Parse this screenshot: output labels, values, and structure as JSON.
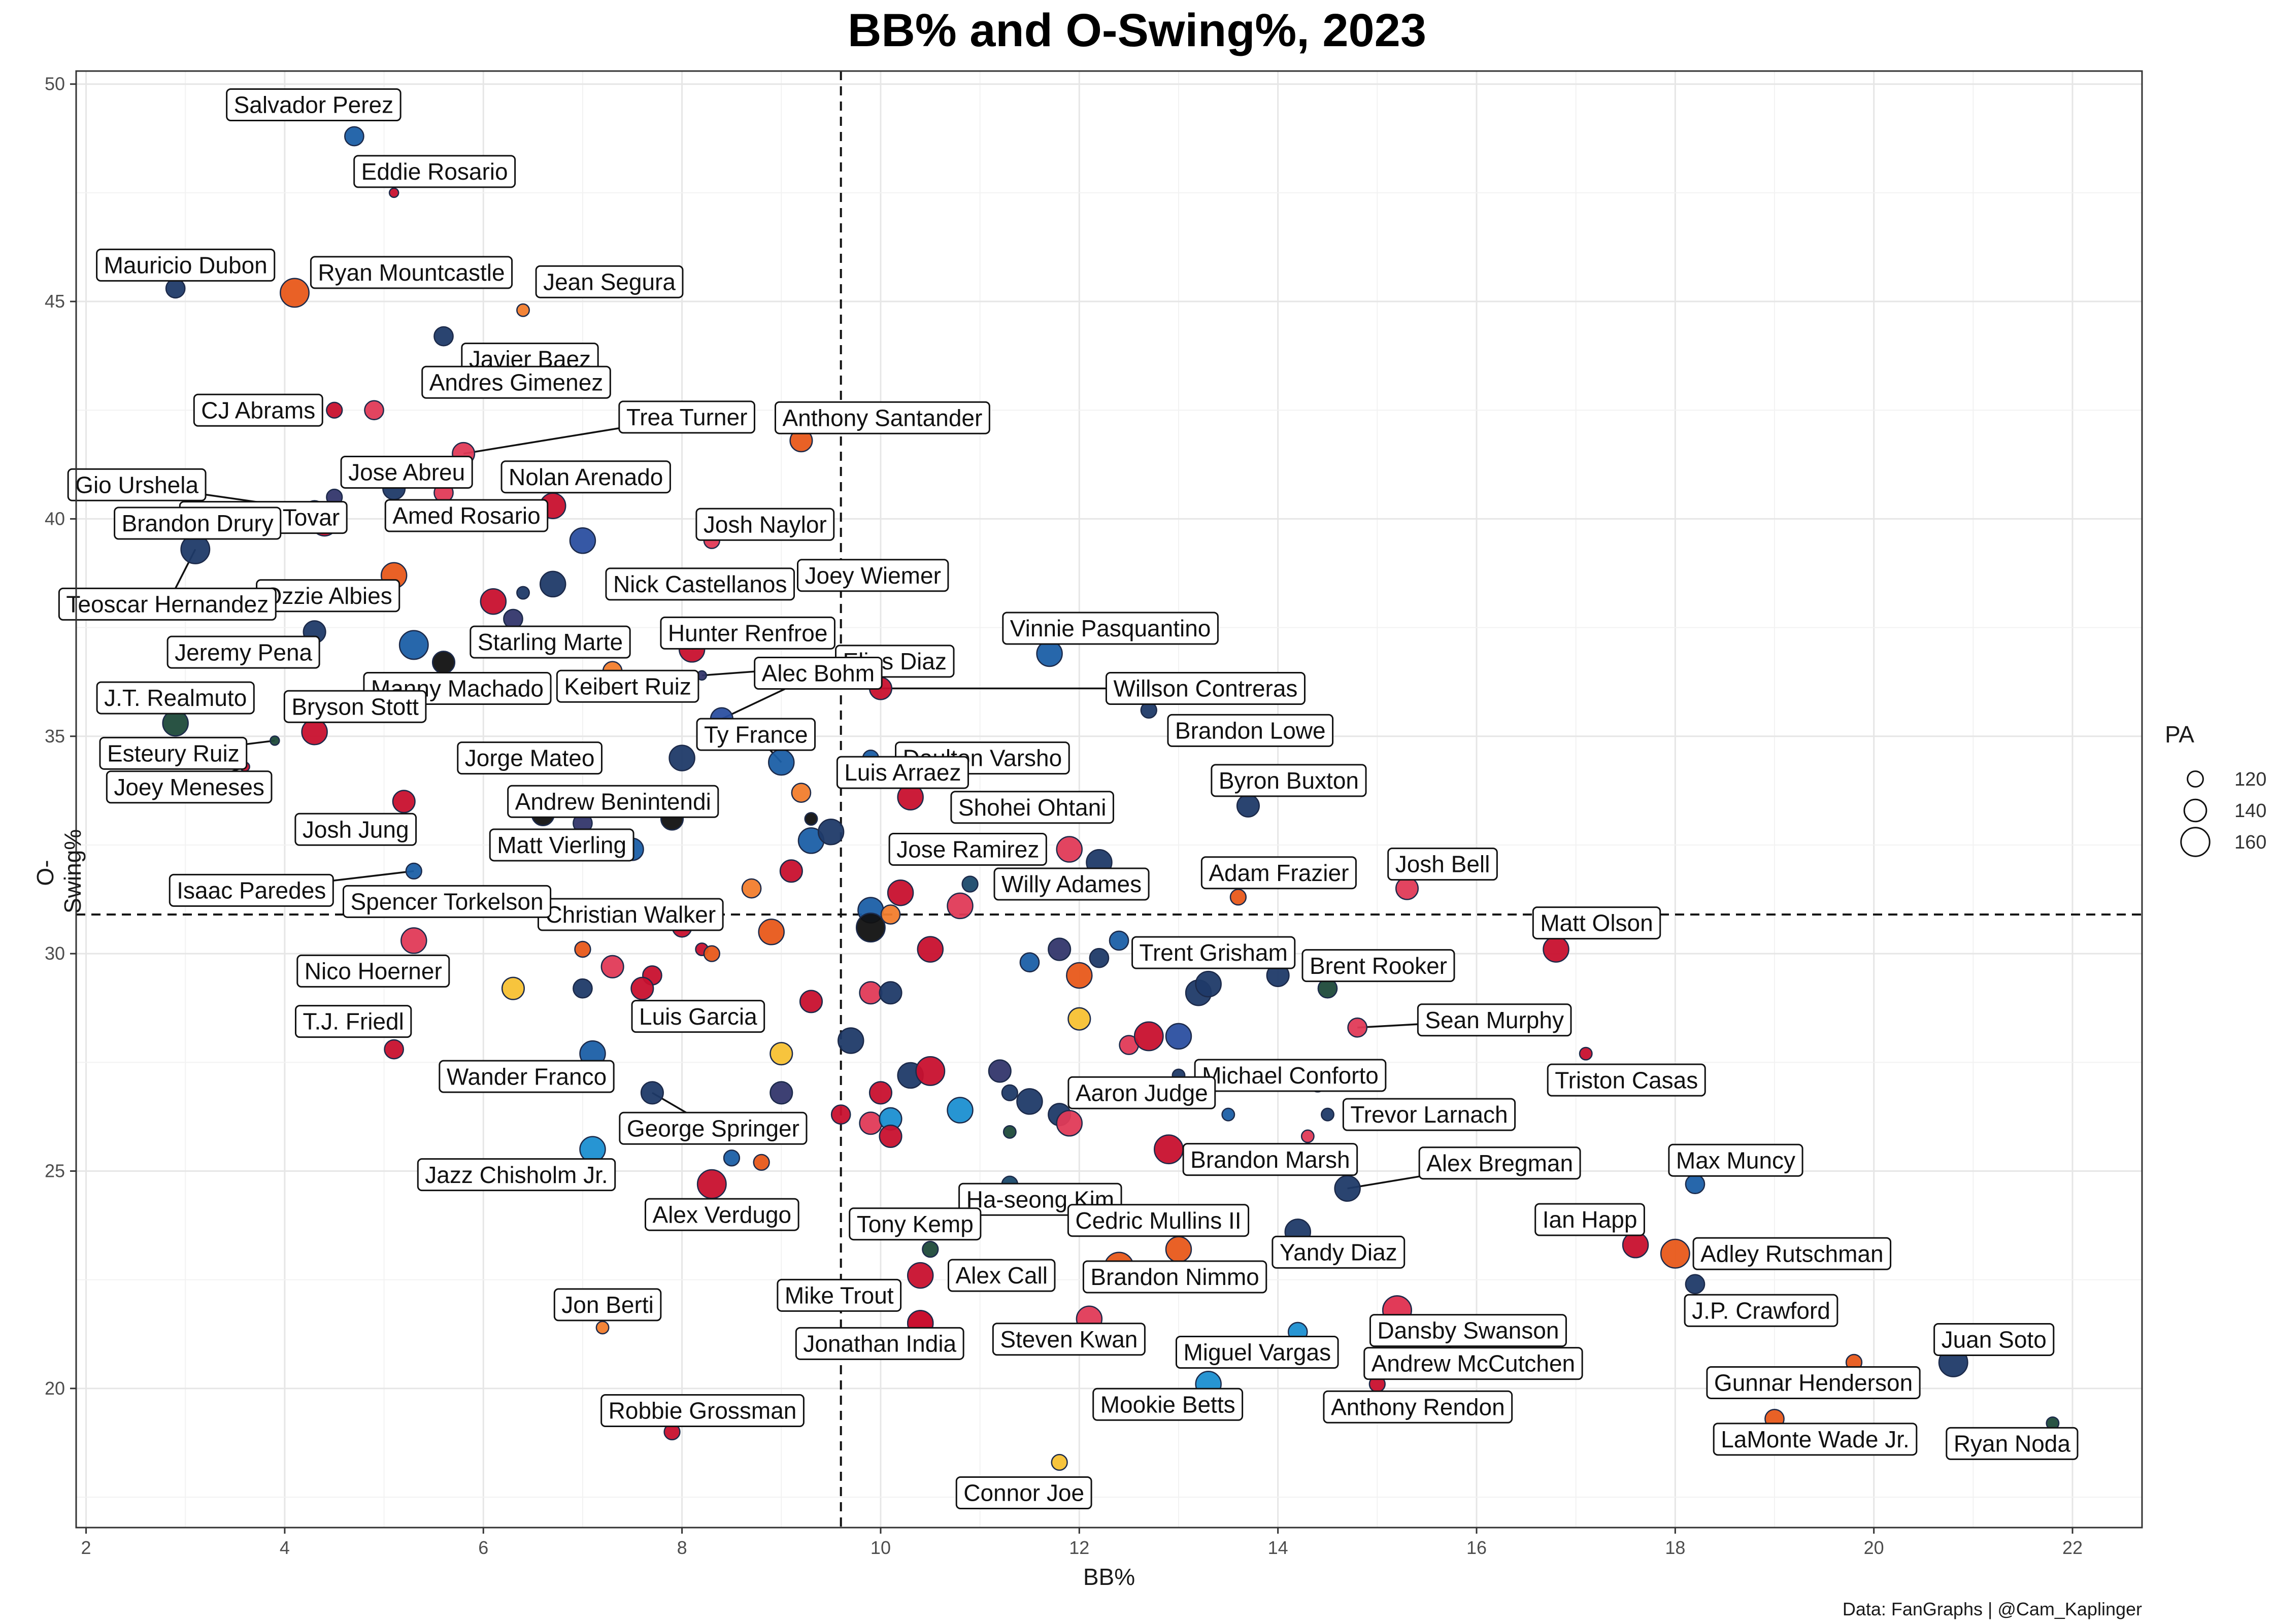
{
  "chart_data": {
    "type": "scatter",
    "title": "BB% and O-Swing%, 2023",
    "xlabel": "BB%",
    "ylabel": "O-Swing%",
    "caption": "Data: FanGraphs | @Cam_Kaplinger",
    "xlim": [
      1.9,
      22.7
    ],
    "ylim": [
      16.8,
      50.3
    ],
    "x_ticks": [
      "2",
      "4",
      "6",
      "8",
      "10",
      "12",
      "14",
      "16",
      "18",
      "20",
      "22"
    ],
    "y_ticks": [
      "20",
      "25",
      "30",
      "35",
      "40",
      "45",
      "50"
    ],
    "x_reference_line": 9.6,
    "y_reference_line": 30.9,
    "grid": true,
    "legend": {
      "title": "PA",
      "position": "right",
      "entries": [
        {
          "label": "120",
          "value": 120
        },
        {
          "label": "140",
          "value": 140
        },
        {
          "label": "160",
          "value": 160
        }
      ]
    },
    "labeled_points": [
      {
        "name": "Salvador Perez",
        "x": 4.7,
        "y": 48.8,
        "pa": 130,
        "color": "#1b5fa6"
      },
      {
        "name": "Eddie Rosario",
        "x": 5.1,
        "y": 47.5,
        "pa": 100,
        "color": "#c8102e"
      },
      {
        "name": "Mauricio Dubon",
        "x": 2.9,
        "y": 45.3,
        "pa": 130,
        "color": "#1f3a68"
      },
      {
        "name": "Ryan Mountcastle",
        "x": 4.1,
        "y": 45.2,
        "pa": 160,
        "color": "#e8591a"
      },
      {
        "name": "Jean Segura",
        "x": 6.4,
        "y": 44.8,
        "pa": 110,
        "color": "#f27d2d"
      },
      {
        "name": "Javier Baez",
        "x": 5.6,
        "y": 44.2,
        "pa": 130,
        "color": "#1f3a68"
      },
      {
        "name": "CJ Abrams",
        "x": 4.5,
        "y": 42.5,
        "pa": 120,
        "color": "#c8102e"
      },
      {
        "name": "Andres Gimenez",
        "x": 4.9,
        "y": 42.5,
        "pa": 130,
        "color": "#e03a57"
      },
      {
        "name": "Trea Turner",
        "x": 5.8,
        "y": 41.5,
        "pa": 140,
        "color": "#e03a57"
      },
      {
        "name": "Anthony Santander",
        "x": 9.2,
        "y": 41.8,
        "pa": 140,
        "color": "#e8591a"
      },
      {
        "name": "Gio Urshela",
        "x": 4.3,
        "y": 40.2,
        "pa": 130,
        "color": "#c8102e"
      },
      {
        "name": "Ezequiel Tovar",
        "x": 4.5,
        "y": 40.5,
        "pa": 120,
        "color": "#33366b"
      },
      {
        "name": "Jose Abreu",
        "x": 5.1,
        "y": 40.7,
        "pa": 140,
        "color": "#1f3a68"
      },
      {
        "name": "Nolan Arenado",
        "x": 6.7,
        "y": 40.3,
        "pa": 150,
        "color": "#c8102e"
      },
      {
        "name": "Brandon Drury",
        "x": 4.4,
        "y": 39.9,
        "pa": 150,
        "color": "#c8102e"
      },
      {
        "name": "Amed Rosario",
        "x": 5.6,
        "y": 40.6,
        "pa": 130,
        "color": "#e03a57"
      },
      {
        "name": "Josh Naylor",
        "x": 8.3,
        "y": 39.5,
        "pa": 120,
        "color": "#e03a57"
      },
      {
        "name": "Ozzie Albies",
        "x": 5.1,
        "y": 38.7,
        "pa": 150,
        "color": "#e8591a"
      },
      {
        "name": "Nick Castellanos",
        "x": 6.7,
        "y": 38.5,
        "pa": 150,
        "color": "#1f3a68"
      },
      {
        "name": "Joey Wiemer",
        "x": 8.9,
        "y": 38.7,
        "pa": 100,
        "color": "#1f3a68"
      },
      {
        "name": "Teoscar Hernandez",
        "x": 3.1,
        "y": 39.3,
        "pa": 160,
        "color": "#1f3a68"
      },
      {
        "name": "Hunter Renfroe",
        "x": 8.1,
        "y": 37.0,
        "pa": 150,
        "color": "#c8102e"
      },
      {
        "name": "Elias Diaz",
        "x": 8.2,
        "y": 36.4,
        "pa": 100,
        "color": "#33366b"
      },
      {
        "name": "Vinnie Pasquantino",
        "x": 11.7,
        "y": 36.9,
        "pa": 150,
        "color": "#1b5fa6"
      },
      {
        "name": "Starling Marte",
        "x": 5.6,
        "y": 36.7,
        "pa": 140,
        "color": "#111111"
      },
      {
        "name": "Jeremy Pena",
        "x": 4.3,
        "y": 37.4,
        "pa": 140,
        "color": "#1f3a68"
      },
      {
        "name": "Alec Bohm",
        "x": 8.4,
        "y": 35.4,
        "pa": 140,
        "color": "#2b4fa0"
      },
      {
        "name": "Willson Contreras",
        "x": 10.0,
        "y": 36.1,
        "pa": 140,
        "color": "#c8102e"
      },
      {
        "name": "J.T. Realmuto",
        "x": 2.9,
        "y": 35.3,
        "pa": 150,
        "color": "#1e4a3a"
      },
      {
        "name": "Manny Machado",
        "x": 6.3,
        "y": 36.1,
        "pa": 130,
        "color": "#6b3a1a"
      },
      {
        "name": "Keibert Ruiz",
        "x": 7.3,
        "y": 36.5,
        "pa": 130,
        "color": "#f27d2d"
      },
      {
        "name": "Bryson Stott",
        "x": 4.3,
        "y": 35.1,
        "pa": 150,
        "color": "#c8102e"
      },
      {
        "name": "Brandon Lowe",
        "x": 12.7,
        "y": 35.6,
        "pa": 120,
        "color": "#1f3a68"
      },
      {
        "name": "Daulton Varsho",
        "x": 9.9,
        "y": 34.5,
        "pa": 120,
        "color": "#1b5fa6"
      },
      {
        "name": "Esteury Ruiz",
        "x": 3.9,
        "y": 34.9,
        "pa": 100,
        "color": "#1e4a3a"
      },
      {
        "name": "Jorge Mateo",
        "x": 8.0,
        "y": 34.5,
        "pa": 150,
        "color": "#1f3a68"
      },
      {
        "name": "Ty France",
        "x": 9.0,
        "y": 34.4,
        "pa": 150,
        "color": "#1b5fa6"
      },
      {
        "name": "Luis Arraez",
        "x": 9.2,
        "y": 33.7,
        "pa": 130,
        "color": "#f27d2d"
      },
      {
        "name": "Byron Buxton",
        "x": 13.7,
        "y": 33.4,
        "pa": 140,
        "color": "#1f3a68"
      },
      {
        "name": "Shohei Ohtani",
        "x": 10.3,
        "y": 33.6,
        "pa": 150,
        "color": "#c8102e"
      },
      {
        "name": "Joey Meneses",
        "x": 3.6,
        "y": 34.3,
        "pa": 100,
        "color": "#c8102e"
      },
      {
        "name": "Andrew Benintendi",
        "x": 8.2,
        "y": 33.5,
        "pa": 130,
        "color": "#111111"
      },
      {
        "name": "Josh Jung",
        "x": 5.2,
        "y": 33.5,
        "pa": 140,
        "color": "#c8102e"
      },
      {
        "name": "Jose Ramirez",
        "x": 11.9,
        "y": 32.4,
        "pa": 150,
        "color": "#e03a57"
      },
      {
        "name": "Matt Vierling",
        "x": 7.3,
        "y": 32.5,
        "pa": 110,
        "color": "#1b5fa6"
      },
      {
        "name": "Adam Frazier",
        "x": 13.6,
        "y": 31.3,
        "pa": 120,
        "color": "#e8591a"
      },
      {
        "name": "Josh Bell",
        "x": 15.3,
        "y": 31.5,
        "pa": 140,
        "color": "#e03a57"
      },
      {
        "name": "Isaac Paredes",
        "x": 5.3,
        "y": 31.9,
        "pa": 120,
        "color": "#1b5fa6"
      },
      {
        "name": "Willy Adames",
        "x": 10.9,
        "y": 31.6,
        "pa": 120,
        "color": "#1b4a6b"
      },
      {
        "name": "Christian Walker",
        "x": 8.3,
        "y": 30.9,
        "pa": 130,
        "color": "#c8102e"
      },
      {
        "name": "Spencer Torkelson",
        "x": 6.4,
        "y": 31.2,
        "pa": 130,
        "color": "#c8102e"
      },
      {
        "name": "Matt Olson",
        "x": 16.8,
        "y": 30.1,
        "pa": 150,
        "color": "#c8102e"
      },
      {
        "name": "Trent Grisham",
        "x": 13.3,
        "y": 29.3,
        "pa": 150,
        "color": "#1f3a68"
      },
      {
        "name": "Brent Rooker",
        "x": 14.5,
        "y": 29.2,
        "pa": 130,
        "color": "#1e4a3a"
      },
      {
        "name": "Nico Hoerner",
        "x": 5.3,
        "y": 30.3,
        "pa": 150,
        "color": "#e03a57"
      },
      {
        "name": "Sean Murphy",
        "x": 14.8,
        "y": 28.3,
        "pa": 130,
        "color": "#e03a57"
      },
      {
        "name": "Luis Garcia",
        "x": 7.6,
        "y": 29.2,
        "pa": 140,
        "color": "#c8102e"
      },
      {
        "name": "T.J. Friedl",
        "x": 5.1,
        "y": 27.8,
        "pa": 130,
        "color": "#c8102e"
      },
      {
        "name": "Triston Casas",
        "x": 17.1,
        "y": 27.7,
        "pa": 110,
        "color": "#c8102e"
      },
      {
        "name": "Michael Conforto",
        "x": 13.0,
        "y": 27.2,
        "pa": 110,
        "color": "#1f3a68"
      },
      {
        "name": "Wander Franco",
        "x": 7.1,
        "y": 27.7,
        "pa": 150,
        "color": "#1b5fa6"
      },
      {
        "name": "Aaron Judge",
        "x": 11.3,
        "y": 26.8,
        "pa": 120,
        "color": "#1f3a68"
      },
      {
        "name": "Trevor Larnach",
        "x": 14.5,
        "y": 26.3,
        "pa": 110,
        "color": "#1f3a68"
      },
      {
        "name": "George Springer",
        "x": 7.7,
        "y": 26.8,
        "pa": 140,
        "color": "#1f3a68"
      },
      {
        "name": "Brandon Marsh",
        "x": 12.9,
        "y": 25.5,
        "pa": 160,
        "color": "#c8102e"
      },
      {
        "name": "Ha-seong Kim",
        "x": 11.3,
        "y": 24.7,
        "pa": 120,
        "color": "#1b4a6b"
      },
      {
        "name": "Alex Bregman",
        "x": 14.7,
        "y": 24.6,
        "pa": 150,
        "color": "#1f3a68"
      },
      {
        "name": "Jazz Chisholm Jr.",
        "x": 7.1,
        "y": 25.5,
        "pa": 150,
        "color": "#1b8fd1"
      },
      {
        "name": "Max Muncy",
        "x": 18.2,
        "y": 24.7,
        "pa": 130,
        "color": "#1b5fa6"
      },
      {
        "name": "Alex Verdugo",
        "x": 8.3,
        "y": 24.7,
        "pa": 160,
        "color": "#c8102e"
      },
      {
        "name": "Ian Happ",
        "x": 17.6,
        "y": 23.3,
        "pa": 150,
        "color": "#c8102e"
      },
      {
        "name": "Tony Kemp",
        "x": 10.5,
        "y": 23.2,
        "pa": 120,
        "color": "#1e4a3a"
      },
      {
        "name": "Cedric Mullins II",
        "x": 13.0,
        "y": 23.2,
        "pa": 150,
        "color": "#e8591a"
      },
      {
        "name": "Adley Rutschman",
        "x": 18.0,
        "y": 23.1,
        "pa": 160,
        "color": "#e8591a"
      },
      {
        "name": "Yandy Diaz",
        "x": 14.2,
        "y": 23.6,
        "pa": 150,
        "color": "#1f3a68"
      },
      {
        "name": "Alex Call",
        "x": 10.4,
        "y": 22.6,
        "pa": 150,
        "color": "#c8102e"
      },
      {
        "name": "Andrew McCutchen",
        "x": 15.2,
        "y": 21.8,
        "pa": 160,
        "color": "#e03a57"
      },
      {
        "name": "J.P. Crawford",
        "x": 18.2,
        "y": 22.4,
        "pa": 130,
        "color": "#1f3a68"
      },
      {
        "name": "Mike Trout",
        "x": 10.4,
        "y": 21.5,
        "pa": 150,
        "color": "#c8102e"
      },
      {
        "name": "Brandon Nimmo",
        "x": 12.4,
        "y": 22.8,
        "pa": 160,
        "color": "#e8591a"
      },
      {
        "name": "Jon Berti",
        "x": 7.2,
        "y": 21.4,
        "pa": 110,
        "color": "#f27d2d"
      },
      {
        "name": "Jonathan India",
        "x": 10.4,
        "y": 21.5,
        "pa": 150,
        "color": "#c8102e"
      },
      {
        "name": "Steven Kwan",
        "x": 12.1,
        "y": 21.6,
        "pa": 150,
        "color": "#e03a57"
      },
      {
        "name": "Dansby Swanson",
        "x": 15.2,
        "y": 21.8,
        "pa": 160,
        "color": "#e03a57"
      },
      {
        "name": "Juan Soto",
        "x": 20.8,
        "y": 20.6,
        "pa": 160,
        "color": "#1f3a68"
      },
      {
        "name": "Miguel Vargas",
        "x": 14.2,
        "y": 21.3,
        "pa": 130,
        "color": "#1b8fd1"
      },
      {
        "name": "Gunnar Henderson",
        "x": 19.8,
        "y": 20.6,
        "pa": 120,
        "color": "#e8591a"
      },
      {
        "name": "Mookie Betts",
        "x": 13.3,
        "y": 20.1,
        "pa": 150,
        "color": "#1b8fd1"
      },
      {
        "name": "Anthony Rendon",
        "x": 15.0,
        "y": 20.1,
        "pa": 120,
        "color": "#c8102e"
      },
      {
        "name": "Robbie Grossman",
        "x": 7.9,
        "y": 19.0,
        "pa": 120,
        "color": "#c8102e"
      },
      {
        "name": "LaMonte Wade Jr.",
        "x": 19.0,
        "y": 19.3,
        "pa": 130,
        "color": "#e8591a"
      },
      {
        "name": "Ryan Noda",
        "x": 21.8,
        "y": 19.2,
        "pa": 110,
        "color": "#1e4a3a"
      },
      {
        "name": "Connor Joe",
        "x": 11.8,
        "y": 18.3,
        "pa": 120,
        "color": "#f7c133"
      }
    ],
    "unlabeled_points": [
      {
        "x": 5.3,
        "y": 37.1,
        "pa": 160,
        "color": "#1b5fa6"
      },
      {
        "x": 6.1,
        "y": 38.1,
        "pa": 150,
        "color": "#c8102e"
      },
      {
        "x": 6.3,
        "y": 37.7,
        "pa": 130,
        "color": "#33366b"
      },
      {
        "x": 6.4,
        "y": 38.3,
        "pa": 110,
        "color": "#1f3a68"
      },
      {
        "x": 7.0,
        "y": 39.5,
        "pa": 150,
        "color": "#2b4fa0"
      },
      {
        "x": 7.0,
        "y": 33.0,
        "pa": 130,
        "color": "#33366b"
      },
      {
        "x": 7.5,
        "y": 32.4,
        "pa": 140,
        "color": "#1b5fa6"
      },
      {
        "x": 6.6,
        "y": 33.2,
        "pa": 140,
        "color": "#111111"
      },
      {
        "x": 7.9,
        "y": 33.1,
        "pa": 140,
        "color": "#111111"
      },
      {
        "x": 8.7,
        "y": 31.5,
        "pa": 130,
        "color": "#f27d2d"
      },
      {
        "x": 9.1,
        "y": 31.9,
        "pa": 140,
        "color": "#c8102e"
      },
      {
        "x": 9.3,
        "y": 32.6,
        "pa": 150,
        "color": "#1b5fa6"
      },
      {
        "x": 9.5,
        "y": 32.8,
        "pa": 150,
        "color": "#1f3a68"
      },
      {
        "x": 9.3,
        "y": 33.1,
        "pa": 110,
        "color": "#111111"
      },
      {
        "x": 10.2,
        "y": 31.4,
        "pa": 150,
        "color": "#c8102e"
      },
      {
        "x": 9.9,
        "y": 31.0,
        "pa": 150,
        "color": "#1b5fa6"
      },
      {
        "x": 9.9,
        "y": 30.6,
        "pa": 160,
        "color": "#111111"
      },
      {
        "x": 10.1,
        "y": 30.9,
        "pa": 130,
        "color": "#f27d2d"
      },
      {
        "x": 8.0,
        "y": 30.6,
        "pa": 130,
        "color": "#c8102e"
      },
      {
        "x": 8.9,
        "y": 30.5,
        "pa": 150,
        "color": "#e8591a"
      },
      {
        "x": 8.2,
        "y": 30.1,
        "pa": 110,
        "color": "#c8102e"
      },
      {
        "x": 8.3,
        "y": 30.0,
        "pa": 120,
        "color": "#e8591a"
      },
      {
        "x": 7.0,
        "y": 30.1,
        "pa": 120,
        "color": "#e8591a"
      },
      {
        "x": 7.3,
        "y": 29.7,
        "pa": 140,
        "color": "#e03a57"
      },
      {
        "x": 7.0,
        "y": 29.2,
        "pa": 130,
        "color": "#1f3a68"
      },
      {
        "x": 6.3,
        "y": 29.2,
        "pa": 140,
        "color": "#f7c133"
      },
      {
        "x": 7.7,
        "y": 29.5,
        "pa": 130,
        "color": "#c8102e"
      },
      {
        "x": 9.3,
        "y": 28.9,
        "pa": 140,
        "color": "#c8102e"
      },
      {
        "x": 9.0,
        "y": 27.7,
        "pa": 140,
        "color": "#f7c133"
      },
      {
        "x": 9.7,
        "y": 28.0,
        "pa": 150,
        "color": "#1f3a68"
      },
      {
        "x": 9.9,
        "y": 29.1,
        "pa": 140,
        "color": "#e03a57"
      },
      {
        "x": 10.1,
        "y": 29.1,
        "pa": 140,
        "color": "#1f3a68"
      },
      {
        "x": 10.5,
        "y": 30.1,
        "pa": 150,
        "color": "#c8102e"
      },
      {
        "x": 10.8,
        "y": 31.1,
        "pa": 150,
        "color": "#e03a57"
      },
      {
        "x": 11.5,
        "y": 29.8,
        "pa": 130,
        "color": "#1b5fa6"
      },
      {
        "x": 11.8,
        "y": 30.1,
        "pa": 140,
        "color": "#33366b"
      },
      {
        "x": 12.0,
        "y": 29.5,
        "pa": 150,
        "color": "#e8591a"
      },
      {
        "x": 12.2,
        "y": 29.9,
        "pa": 130,
        "color": "#1f3a68"
      },
      {
        "x": 12.4,
        "y": 30.3,
        "pa": 130,
        "color": "#1b5fa6"
      },
      {
        "x": 12.2,
        "y": 32.1,
        "pa": 150,
        "color": "#1f3a68"
      },
      {
        "x": 13.2,
        "y": 29.1,
        "pa": 150,
        "color": "#1f3a68"
      },
      {
        "x": 14.0,
        "y": 29.5,
        "pa": 140,
        "color": "#1f3a68"
      },
      {
        "x": 12.0,
        "y": 28.5,
        "pa": 140,
        "color": "#f7c133"
      },
      {
        "x": 12.5,
        "y": 27.9,
        "pa": 130,
        "color": "#e03a57"
      },
      {
        "x": 12.7,
        "y": 28.1,
        "pa": 160,
        "color": "#c8102e"
      },
      {
        "x": 13.0,
        "y": 28.1,
        "pa": 150,
        "color": "#2b4fa0"
      },
      {
        "x": 10.3,
        "y": 27.2,
        "pa": 150,
        "color": "#1f3a68"
      },
      {
        "x": 10.5,
        "y": 27.3,
        "pa": 160,
        "color": "#c8102e"
      },
      {
        "x": 11.2,
        "y": 27.3,
        "pa": 140,
        "color": "#33366b"
      },
      {
        "x": 11.5,
        "y": 26.6,
        "pa": 150,
        "color": "#1f3a68"
      },
      {
        "x": 10.8,
        "y": 26.4,
        "pa": 150,
        "color": "#1b8fd1"
      },
      {
        "x": 11.8,
        "y": 26.3,
        "pa": 140,
        "color": "#1f3a68"
      },
      {
        "x": 11.9,
        "y": 26.1,
        "pa": 150,
        "color": "#e03a57"
      },
      {
        "x": 10.0,
        "y": 26.8,
        "pa": 140,
        "color": "#c8102e"
      },
      {
        "x": 9.0,
        "y": 26.8,
        "pa": 140,
        "color": "#33366b"
      },
      {
        "x": 9.6,
        "y": 26.3,
        "pa": 130,
        "color": "#c8102e"
      },
      {
        "x": 9.9,
        "y": 26.1,
        "pa": 140,
        "color": "#e03a57"
      },
      {
        "x": 10.1,
        "y": 26.2,
        "pa": 140,
        "color": "#1b8fd1"
      },
      {
        "x": 10.1,
        "y": 25.8,
        "pa": 140,
        "color": "#c8102e"
      },
      {
        "x": 11.3,
        "y": 25.9,
        "pa": 110,
        "color": "#1e4a3a"
      },
      {
        "x": 13.5,
        "y": 26.3,
        "pa": 110,
        "color": "#1b5fa6"
      },
      {
        "x": 14.3,
        "y": 25.8,
        "pa": 110,
        "color": "#e03a57"
      },
      {
        "x": 14.4,
        "y": 27.0,
        "pa": 120,
        "color": "#e8591a"
      },
      {
        "x": 8.5,
        "y": 25.3,
        "pa": 120,
        "color": "#1b5fa6"
      },
      {
        "x": 8.8,
        "y": 25.2,
        "pa": 120,
        "color": "#e8591a"
      }
    ]
  }
}
